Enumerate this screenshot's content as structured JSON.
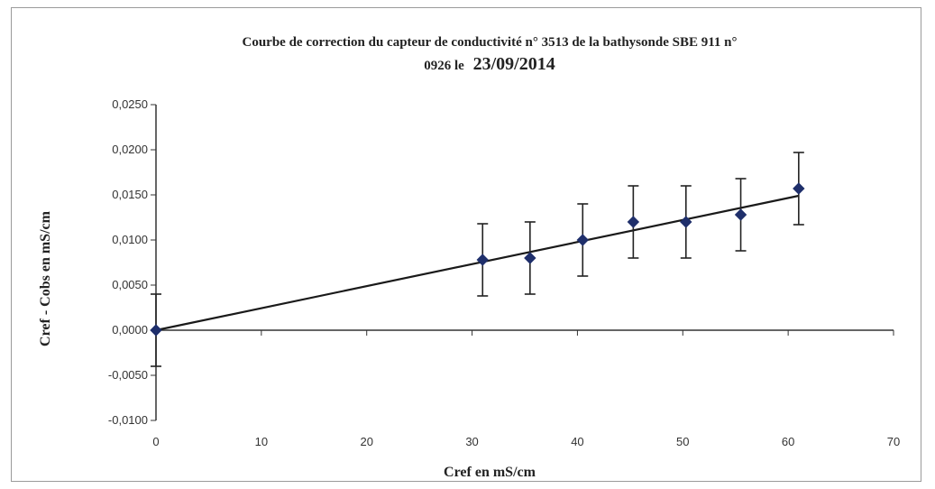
{
  "chart_data": {
    "type": "scatter",
    "title_line1": "Courbe de correction du capteur de conductivité n° 3513 de la bathysonde SBE 911 n°",
    "title_line2_prefix": "0926 le",
    "title_line2_date": "23/09/2014",
    "xlabel": "Cref en mS/cm",
    "ylabel": "Cref - Cobs en mS/cm",
    "xlim": [
      0,
      70
    ],
    "ylim": [
      -0.01,
      0.025
    ],
    "x_ticks": [
      0,
      10,
      20,
      30,
      40,
      50,
      60,
      70
    ],
    "x_tick_labels": [
      "0",
      "10",
      "20",
      "30",
      "40",
      "50",
      "60",
      "70"
    ],
    "y_ticks": [
      -0.01,
      -0.005,
      0,
      0.005,
      0.01,
      0.015,
      0.02,
      0.025
    ],
    "y_tick_labels": [
      "-0,0100",
      "-0,0050",
      "0,0000",
      "0,0050",
      "0,0100",
      "0,0150",
      "0,0200",
      "0,0250"
    ],
    "series": [
      {
        "x": [
          0,
          31,
          35.5,
          40.5,
          45.3,
          50.3,
          55.5,
          61
        ],
        "y": [
          0,
          0.0078,
          0.008,
          0.01,
          0.012,
          0.012,
          0.0128,
          0.0157
        ],
        "error": [
          0.004,
          0.004,
          0.004,
          0.004,
          0.004,
          0.004,
          0.004,
          0.004
        ],
        "color": "#1f2f6b"
      }
    ],
    "trendline": {
      "x": [
        0,
        61
      ],
      "y": [
        0,
        0.0149
      ],
      "color": "#1a1a1a"
    },
    "grid": false
  }
}
